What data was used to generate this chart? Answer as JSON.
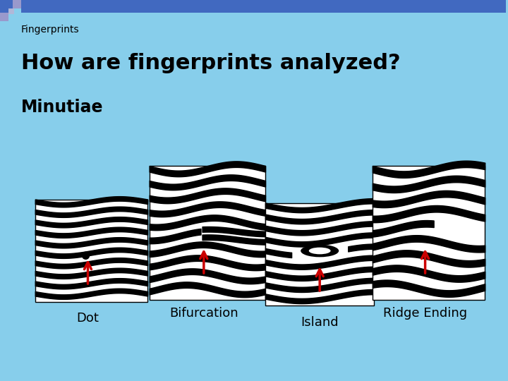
{
  "bg_color": "#87CEEB",
  "title_small": "Fingerprints",
  "title_large": "How are fingerprints analyzed?",
  "subtitle": "Minutiae",
  "labels": [
    "Dot",
    "Bifurcation",
    "Island",
    "Ridge Ending"
  ],
  "label_colors": [
    "black",
    "black",
    "black",
    "black"
  ],
  "arrow_color": "#CC0000",
  "image_bg": "white",
  "stripe_color": "black",
  "header_blue": "#4169C0",
  "header_lavender": "#9999CC"
}
